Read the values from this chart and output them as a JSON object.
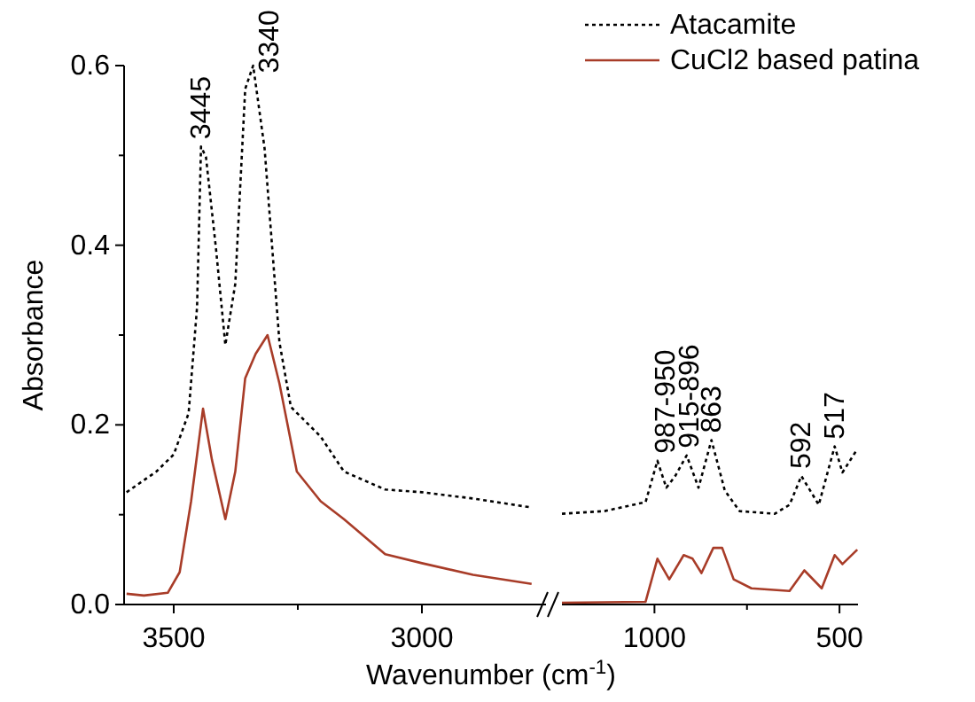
{
  "chart_data": [
    {
      "type": "line",
      "xlabel": "Wavenumber (cm$^{-1}$)",
      "ylabel": "Absorbance",
      "xlim": [
        3600,
        2750
      ],
      "ylim": [
        0,
        0.6
      ],
      "xticks": [
        3500,
        {
          "value": 3250,
          "label": null
        },
        3000
      ],
      "yticks": [
        {
          "value": 0,
          "label": "0.0"
        },
        {
          "value": 0.1,
          "label": null
        },
        {
          "value": 0.2,
          "label": "0.2"
        },
        {
          "value": 0.3,
          "label": null
        },
        {
          "value": 0.4,
          "label": "0.4"
        },
        {
          "value": 0.5,
          "label": null
        },
        {
          "value": 0.6,
          "label": "0.6"
        }
      ],
      "series": [
        {
          "color": "#000000",
          "line_style": "dotted",
          "x": [
            3595,
            3535,
            3500,
            3470,
            3453,
            3445,
            3435,
            3415,
            3396,
            3376,
            3356,
            3340,
            3317,
            3287,
            3264,
            3204,
            3157,
            3074,
            3000,
            2897,
            2779
          ],
          "values": [
            0.125,
            0.148,
            0.167,
            0.213,
            0.331,
            0.51,
            0.498,
            0.397,
            0.289,
            0.357,
            0.574,
            0.6,
            0.508,
            0.292,
            0.22,
            0.187,
            0.148,
            0.128,
            0.125,
            0.118,
            0.108
          ]
        },
        {
          "color": "#a83c28",
          "line_style": "solid",
          "x": [
            3595,
            3560,
            3512,
            3488,
            3465,
            3441,
            3423,
            3396,
            3376,
            3356,
            3335,
            3311,
            3287,
            3252,
            3204,
            3157,
            3074,
            3000,
            2897,
            2779
          ],
          "values": [
            0.012,
            0.01,
            0.013,
            0.036,
            0.115,
            0.218,
            0.161,
            0.095,
            0.148,
            0.252,
            0.279,
            0.3,
            0.246,
            0.148,
            0.115,
            0.095,
            0.056,
            0.046,
            0.033,
            0.023
          ]
        }
      ],
      "annotations": [
        {
          "text": "3445",
          "x": 3445,
          "y": 0.51
        },
        {
          "text": "3340",
          "x": 3340,
          "y": 0.6
        }
      ]
    },
    {
      "type": "line",
      "xlim": [
        1250,
        450
      ],
      "ylim": [
        0,
        0.6
      ],
      "tick_labels": "x",
      "legend": "top right",
      "xticks": [
        1000,
        {
          "value": 750,
          "label": null
        },
        500
      ],
      "series": [
        {
          "name": "Atacamite",
          "color": "#000000",
          "line_style": "dotted",
          "x": [
            1250,
            1135,
            1024,
            992,
            968,
            944,
            913,
            881,
            846,
            810,
            770,
            675,
            635,
            603,
            556,
            513,
            492,
            452
          ],
          "values": [
            0.101,
            0.104,
            0.114,
            0.16,
            0.13,
            0.143,
            0.166,
            0.13,
            0.183,
            0.127,
            0.104,
            0.101,
            0.111,
            0.143,
            0.111,
            0.176,
            0.147,
            0.173
          ]
        },
        {
          "name": "CuCl2 based patina",
          "color": "#a83c28",
          "line_style": "solid",
          "x": [
            1250,
            1024,
            992,
            960,
            921,
            897,
            873,
            841,
            817,
            786,
            738,
            635,
            595,
            548,
            513,
            492,
            452
          ],
          "values": [
            0.002,
            0.003,
            0.051,
            0.028,
            0.055,
            0.051,
            0.035,
            0.063,
            0.063,
            0.028,
            0.018,
            0.015,
            0.038,
            0.018,
            0.055,
            0.045,
            0.061
          ]
        }
      ],
      "annotations": [
        {
          "text": "987-950",
          "x": 970,
          "y": 0.16
        },
        {
          "text": "915-896",
          "x": 905,
          "y": 0.166
        },
        {
          "text": "863",
          "x": 846,
          "y": 0.183
        },
        {
          "text": "592",
          "x": 603,
          "y": 0.143
        },
        {
          "text": "517",
          "x": 513,
          "y": 0.176
        }
      ]
    }
  ]
}
